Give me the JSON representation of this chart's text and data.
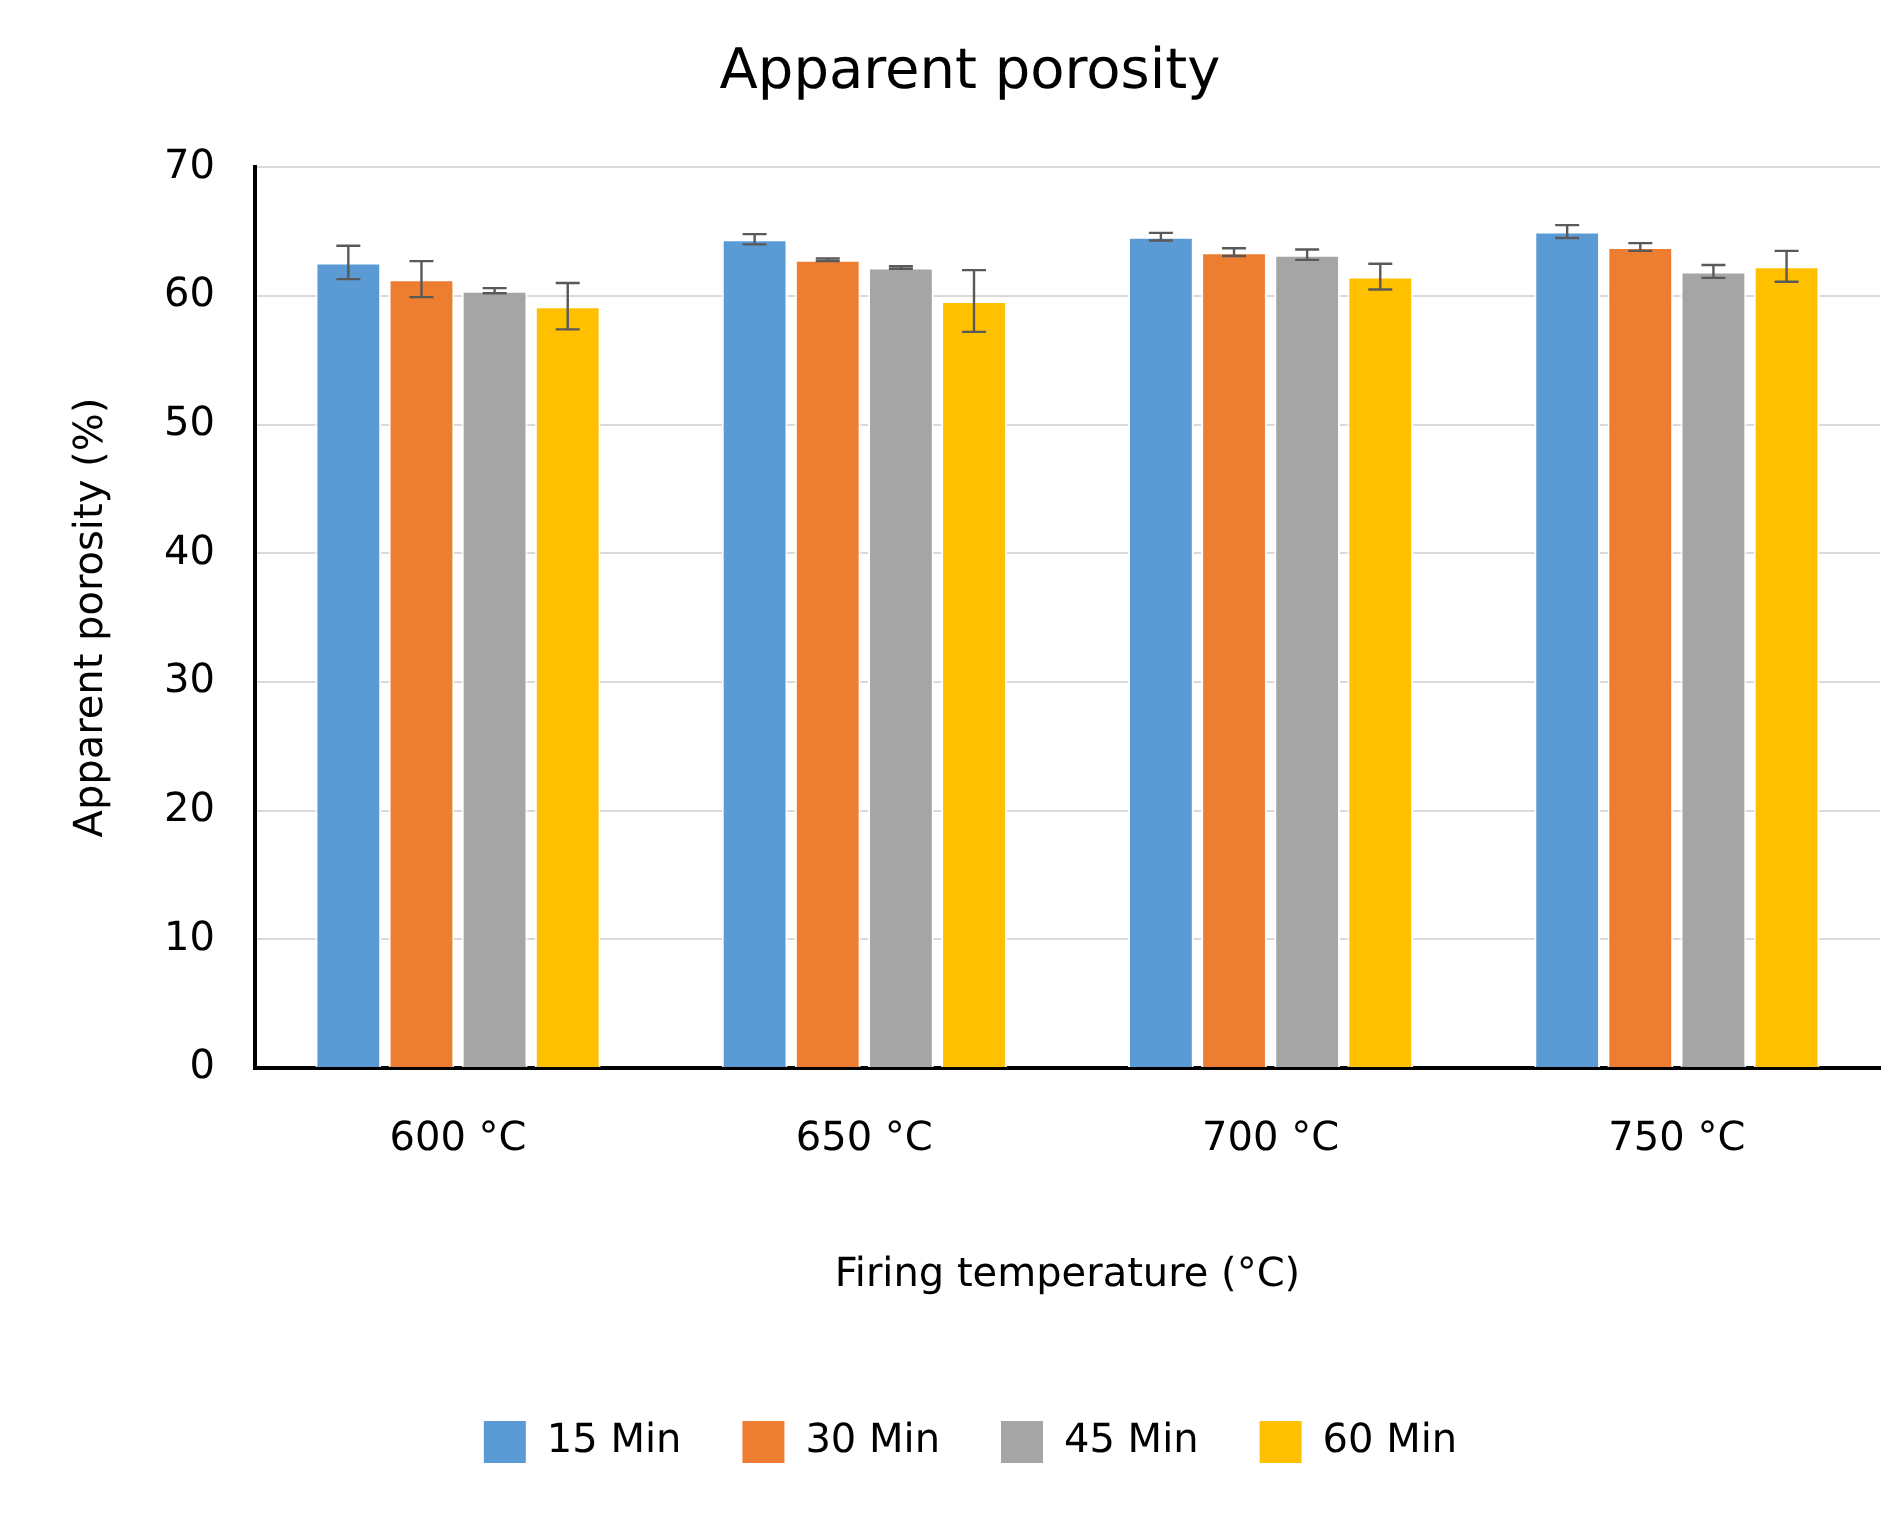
{
  "chart_data": {
    "type": "bar",
    "title": "Apparent porosity",
    "xlabel": "Firing temperature (°C)",
    "ylabel": "Apparent porosity (%)",
    "categories": [
      "600 °C",
      "650 °C",
      "700 °C",
      "750 °C"
    ],
    "series": [
      {
        "name": "15 Min",
        "color": "#5b9bd5",
        "values": [
          62.6,
          64.4,
          64.6,
          65.0
        ],
        "errors": [
          1.3,
          0.4,
          0.3,
          0.5
        ]
      },
      {
        "name": "30 Min",
        "color": "#ed7d31",
        "values": [
          61.3,
          62.8,
          63.4,
          63.8
        ],
        "errors": [
          1.4,
          0.1,
          0.3,
          0.3
        ]
      },
      {
        "name": "45 Min",
        "color": "#a5a5a5",
        "values": [
          60.4,
          62.2,
          63.2,
          61.9
        ],
        "errors": [
          0.2,
          0.1,
          0.4,
          0.5
        ]
      },
      {
        "name": "60 Min",
        "color": "#ffc000",
        "values": [
          59.2,
          59.6,
          61.5,
          62.3
        ],
        "errors": [
          1.8,
          2.4,
          1.0,
          1.2
        ]
      }
    ],
    "ylim": [
      0,
      70
    ],
    "yticks": [
      0,
      10,
      20,
      30,
      40,
      50,
      60,
      70
    ],
    "grid": "y",
    "legend": "bottom"
  }
}
